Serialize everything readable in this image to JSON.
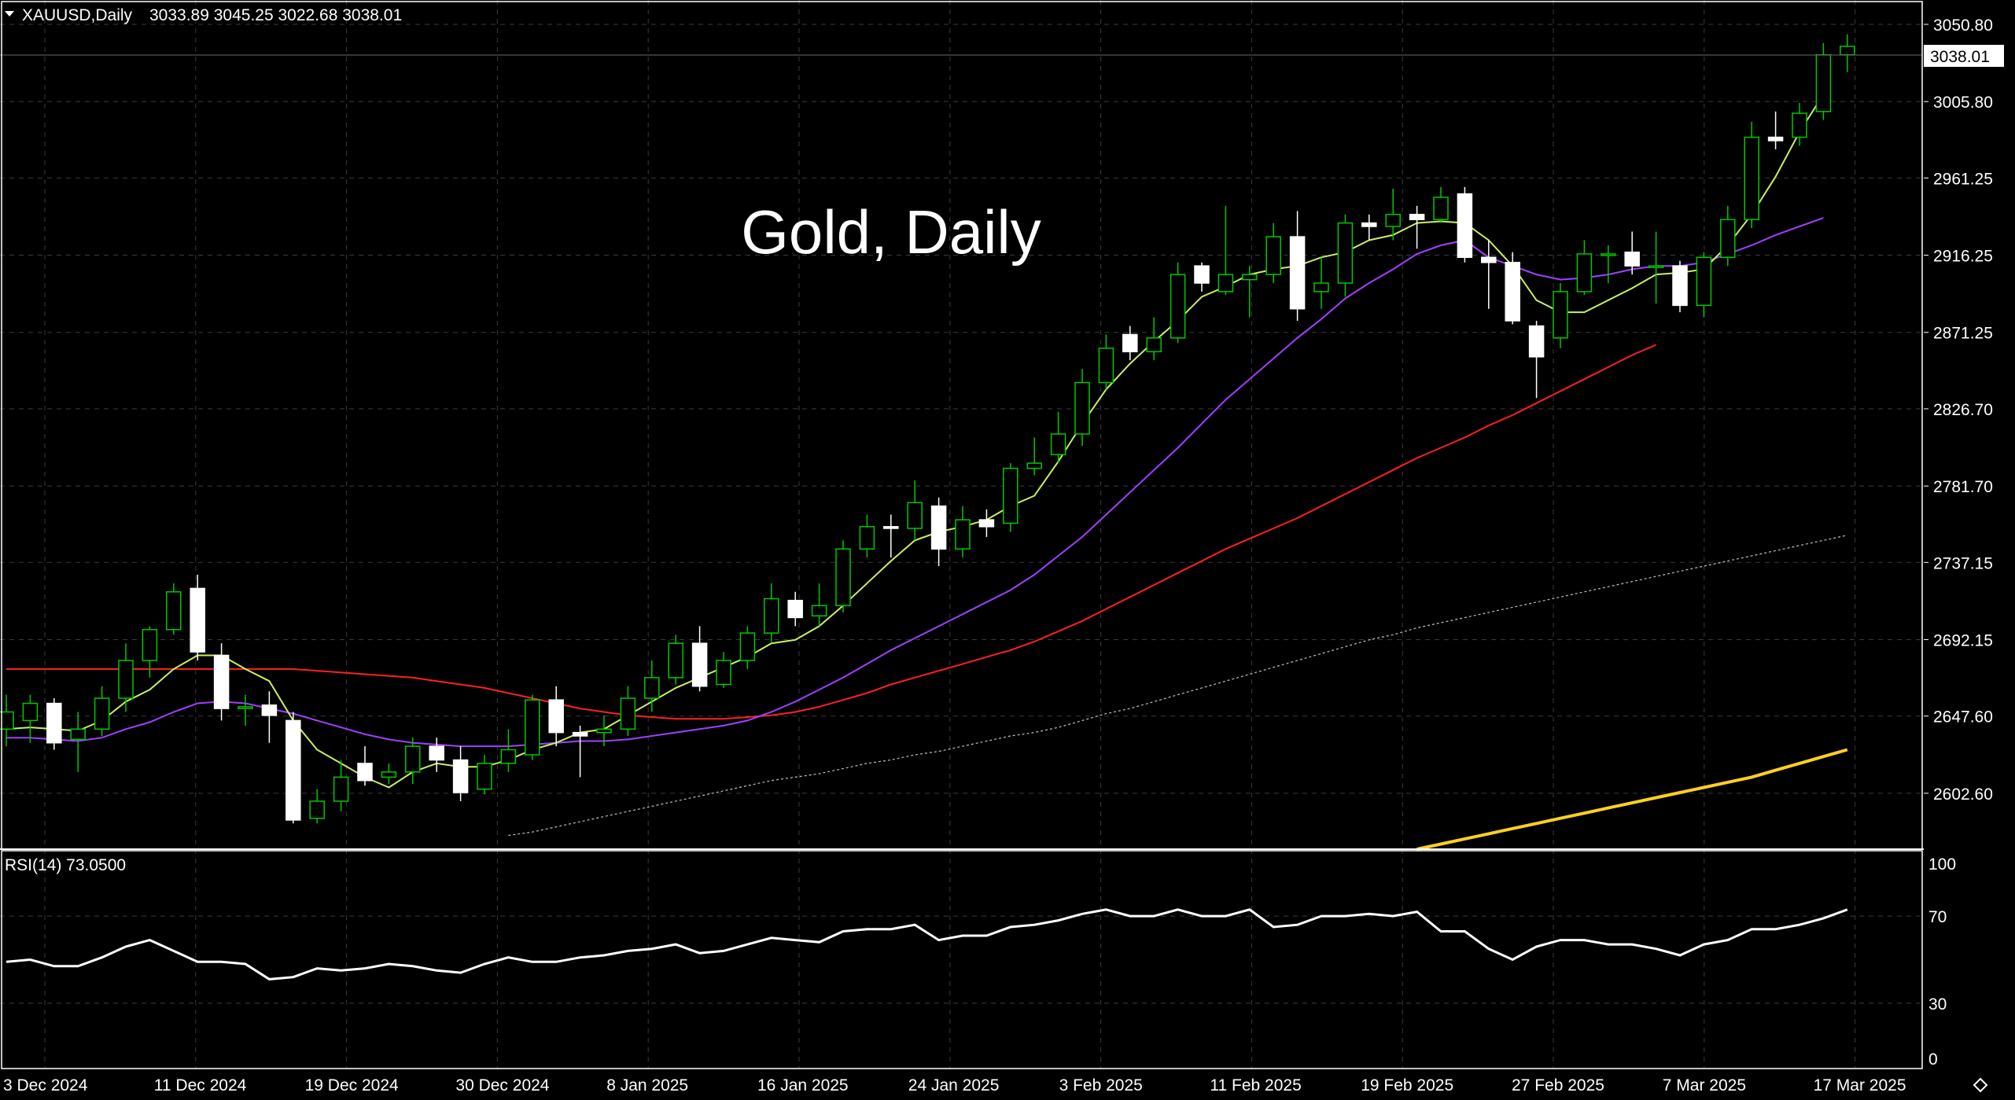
{
  "header": {
    "symbol": "XAUUSD,Daily",
    "ohlc": "3033.89 3045.25 3022.68 3038.01"
  },
  "watermark": "Gold, Daily",
  "rsi_label": "RSI(14) 73.0500",
  "last_price_label": "3038.01",
  "price_axis_labels": [
    "3050.80",
    "3005.80",
    "2961.25",
    "2916.25",
    "2871.25",
    "2826.70",
    "2781.70",
    "2737.15",
    "2692.15",
    "2647.60",
    "2602.60"
  ],
  "rsi_axis_labels": [
    "100",
    "70",
    "30",
    "0"
  ],
  "date_labels": [
    "3 Dec 2024",
    "11 Dec 2024",
    "19 Dec 2024",
    "30 Dec 2024",
    "8 Jan 2025",
    "16 Jan 2025",
    "24 Jan 2025",
    "3 Feb 2025",
    "11 Feb 2025",
    "19 Feb 2025",
    "27 Feb 2025",
    "7 Mar 2025",
    "17 Mar 2025"
  ],
  "colors": {
    "background": "#000000",
    "bull_candle": "#00c800",
    "bear_candle": "#ffffff",
    "ma_fast": "#c8f064",
    "ma_mid": "#a040ff",
    "ma_slow": "#ff2020",
    "ma_long": "#c0c0c0",
    "ma_200": "#ffd020",
    "rsi_line": "#ffffff"
  },
  "chart_data": {
    "type": "candlestick",
    "y_range": [
      2570,
      3065
    ],
    "candles": [
      {
        "o": 2640,
        "h": 2660,
        "l": 2630,
        "c": 2650
      },
      {
        "o": 2645,
        "h": 2660,
        "l": 2632,
        "c": 2655
      },
      {
        "o": 2655,
        "h": 2658,
        "l": 2628,
        "c": 2632
      },
      {
        "o": 2634,
        "h": 2650,
        "l": 2615,
        "c": 2640
      },
      {
        "o": 2640,
        "h": 2665,
        "l": 2636,
        "c": 2658
      },
      {
        "o": 2658,
        "h": 2690,
        "l": 2650,
        "c": 2680
      },
      {
        "o": 2680,
        "h": 2700,
        "l": 2670,
        "c": 2698
      },
      {
        "o": 2698,
        "h": 2725,
        "l": 2695,
        "c": 2720
      },
      {
        "o": 2722,
        "h": 2730,
        "l": 2680,
        "c": 2685
      },
      {
        "o": 2683,
        "h": 2690,
        "l": 2645,
        "c": 2652
      },
      {
        "o": 2652,
        "h": 2660,
        "l": 2642,
        "c": 2653
      },
      {
        "o": 2654,
        "h": 2662,
        "l": 2632,
        "c": 2648
      },
      {
        "o": 2645,
        "h": 2650,
        "l": 2585,
        "c": 2587
      },
      {
        "o": 2588,
        "h": 2605,
        "l": 2585,
        "c": 2598
      },
      {
        "o": 2598,
        "h": 2622,
        "l": 2592,
        "c": 2612
      },
      {
        "o": 2620,
        "h": 2630,
        "l": 2607,
        "c": 2610
      },
      {
        "o": 2612,
        "h": 2620,
        "l": 2608,
        "c": 2615
      },
      {
        "o": 2615,
        "h": 2635,
        "l": 2608,
        "c": 2630
      },
      {
        "o": 2630,
        "h": 2635,
        "l": 2615,
        "c": 2622
      },
      {
        "o": 2622,
        "h": 2630,
        "l": 2598,
        "c": 2603
      },
      {
        "o": 2605,
        "h": 2625,
        "l": 2602,
        "c": 2620
      },
      {
        "o": 2620,
        "h": 2640,
        "l": 2615,
        "c": 2628
      },
      {
        "o": 2625,
        "h": 2660,
        "l": 2622,
        "c": 2657
      },
      {
        "o": 2657,
        "h": 2665,
        "l": 2630,
        "c": 2638
      },
      {
        "o": 2638,
        "h": 2642,
        "l": 2612,
        "c": 2636
      },
      {
        "o": 2638,
        "h": 2648,
        "l": 2630,
        "c": 2640
      },
      {
        "o": 2640,
        "h": 2665,
        "l": 2636,
        "c": 2658
      },
      {
        "o": 2658,
        "h": 2680,
        "l": 2650,
        "c": 2670
      },
      {
        "o": 2670,
        "h": 2695,
        "l": 2666,
        "c": 2690
      },
      {
        "o": 2690,
        "h": 2700,
        "l": 2662,
        "c": 2665
      },
      {
        "o": 2666,
        "h": 2685,
        "l": 2664,
        "c": 2680
      },
      {
        "o": 2680,
        "h": 2700,
        "l": 2675,
        "c": 2696
      },
      {
        "o": 2696,
        "h": 2725,
        "l": 2690,
        "c": 2716
      },
      {
        "o": 2715,
        "h": 2720,
        "l": 2700,
        "c": 2705
      },
      {
        "o": 2706,
        "h": 2725,
        "l": 2700,
        "c": 2712
      },
      {
        "o": 2712,
        "h": 2750,
        "l": 2708,
        "c": 2745
      },
      {
        "o": 2745,
        "h": 2765,
        "l": 2740,
        "c": 2758
      },
      {
        "o": 2758,
        "h": 2765,
        "l": 2740,
        "c": 2757
      },
      {
        "o": 2757,
        "h": 2785,
        "l": 2750,
        "c": 2772
      },
      {
        "o": 2770,
        "h": 2775,
        "l": 2735,
        "c": 2745
      },
      {
        "o": 2745,
        "h": 2770,
        "l": 2740,
        "c": 2762
      },
      {
        "o": 2762,
        "h": 2768,
        "l": 2752,
        "c": 2758
      },
      {
        "o": 2760,
        "h": 2795,
        "l": 2755,
        "c": 2792
      },
      {
        "o": 2792,
        "h": 2810,
        "l": 2788,
        "c": 2795
      },
      {
        "o": 2800,
        "h": 2825,
        "l": 2795,
        "c": 2812
      },
      {
        "o": 2812,
        "h": 2850,
        "l": 2805,
        "c": 2842
      },
      {
        "o": 2842,
        "h": 2870,
        "l": 2838,
        "c": 2862
      },
      {
        "o": 2870,
        "h": 2875,
        "l": 2855,
        "c": 2860
      },
      {
        "o": 2860,
        "h": 2880,
        "l": 2855,
        "c": 2868
      },
      {
        "o": 2868,
        "h": 2912,
        "l": 2865,
        "c": 2905
      },
      {
        "o": 2910,
        "h": 2912,
        "l": 2895,
        "c": 2900
      },
      {
        "o": 2895,
        "h": 2945,
        "l": 2893,
        "c": 2905
      },
      {
        "o": 2902,
        "h": 2910,
        "l": 2880,
        "c": 2905
      },
      {
        "o": 2905,
        "h": 2935,
        "l": 2900,
        "c": 2927
      },
      {
        "o": 2927,
        "h": 2942,
        "l": 2878,
        "c": 2885
      },
      {
        "o": 2895,
        "h": 2915,
        "l": 2885,
        "c": 2900
      },
      {
        "o": 2900,
        "h": 2940,
        "l": 2892,
        "c": 2935
      },
      {
        "o": 2935,
        "h": 2940,
        "l": 2925,
        "c": 2933
      },
      {
        "o": 2933,
        "h": 2955,
        "l": 2925,
        "c": 2940
      },
      {
        "o": 2940,
        "h": 2945,
        "l": 2920,
        "c": 2937
      },
      {
        "o": 2937,
        "h": 2956,
        "l": 2935,
        "c": 2950
      },
      {
        "o": 2952,
        "h": 2956,
        "l": 2912,
        "c": 2915
      },
      {
        "o": 2915,
        "h": 2925,
        "l": 2885,
        "c": 2912
      },
      {
        "o": 2912,
        "h": 2918,
        "l": 2876,
        "c": 2878
      },
      {
        "o": 2875,
        "h": 2878,
        "l": 2833,
        "c": 2857
      },
      {
        "o": 2868,
        "h": 2900,
        "l": 2862,
        "c": 2895
      },
      {
        "o": 2895,
        "h": 2925,
        "l": 2893,
        "c": 2917
      },
      {
        "o": 2917,
        "h": 2922,
        "l": 2900,
        "c": 2917
      },
      {
        "o": 2918,
        "h": 2930,
        "l": 2905,
        "c": 2910
      },
      {
        "o": 2910,
        "h": 2930,
        "l": 2888,
        "c": 2910
      },
      {
        "o": 2910,
        "h": 2913,
        "l": 2883,
        "c": 2887
      },
      {
        "o": 2887,
        "h": 2918,
        "l": 2880,
        "c": 2915
      },
      {
        "o": 2915,
        "h": 2945,
        "l": 2910,
        "c": 2937
      },
      {
        "o": 2937,
        "h": 2994,
        "l": 2932,
        "c": 2985
      },
      {
        "o": 2985,
        "h": 3000,
        "l": 2978,
        "c": 2983
      },
      {
        "o": 2985,
        "h": 3005,
        "l": 2980,
        "c": 2999
      },
      {
        "o": 3000,
        "h": 3040,
        "l": 2995,
        "c": 3033
      },
      {
        "o": 3033,
        "h": 3045,
        "l": 3023,
        "c": 3038
      }
    ],
    "ma_fast_values": [
      2640,
      2641,
      2640,
      2639,
      2645,
      2656,
      2663,
      2675,
      2683,
      2683,
      2675,
      2668,
      2645,
      2628,
      2620,
      2612,
      2606,
      2615,
      2620,
      2618,
      2618,
      2622,
      2628,
      2632,
      2638,
      2640,
      2648,
      2656,
      2664,
      2670,
      2676,
      2682,
      2690,
      2692,
      2700,
      2712,
      2725,
      2738,
      2750,
      2755,
      2758,
      2762,
      2770,
      2776,
      2796,
      2818,
      2838,
      2853,
      2866,
      2878,
      2892,
      2898,
      2905,
      2908,
      2910,
      2915,
      2918,
      2925,
      2928,
      2935,
      2936,
      2935,
      2925,
      2910,
      2890,
      2883,
      2883,
      2890,
      2897,
      2905,
      2906,
      2908,
      2922,
      2940,
      2962,
      2988,
      3010
    ],
    "ma_mid_values": [
      2635,
      2635,
      2634,
      2633,
      2635,
      2640,
      2644,
      2650,
      2655,
      2656,
      2655,
      2652,
      2649,
      2645,
      2641,
      2637,
      2634,
      2632,
      2631,
      2630,
      2630,
      2630,
      2631,
      2632,
      2633,
      2633,
      2634,
      2636,
      2638,
      2640,
      2642,
      2645,
      2650,
      2656,
      2663,
      2670,
      2678,
      2686,
      2693,
      2700,
      2707,
      2714,
      2721,
      2730,
      2741,
      2752,
      2765,
      2778,
      2791,
      2804,
      2818,
      2832,
      2844,
      2856,
      2868,
      2879,
      2891,
      2900,
      2908,
      2917,
      2922,
      2925,
      2915,
      2910,
      2905,
      2902,
      2903,
      2905,
      2908,
      2910,
      2910,
      2912,
      2917,
      2922,
      2928,
      2933,
      2938
    ],
    "ma_slow_values": [
      2675,
      2675,
      2675,
      2675,
      2675,
      2675,
      2675,
      2675,
      2675,
      2675,
      2675,
      2675,
      2675,
      2674,
      2673,
      2672,
      2671,
      2670,
      2668,
      2666,
      2664,
      2661,
      2658,
      2655,
      2652,
      2650,
      2648,
      2647,
      2646,
      2646,
      2646,
      2647,
      2648,
      2650,
      2653,
      2657,
      2661,
      2666,
      2670,
      2674,
      2678,
      2682,
      2686,
      2691,
      2697,
      2703,
      2710,
      2717,
      2724,
      2731,
      2738,
      2745,
      2751,
      2757,
      2763,
      2770,
      2777,
      2784,
      2791,
      2798,
      2804,
      2810,
      2817,
      2823,
      2830,
      2837,
      2844,
      2851,
      2858,
      2864
    ],
    "ma_long_values": [
      2578,
      2580,
      2583,
      2586,
      2589,
      2592,
      2595,
      2598,
      2601,
      2604,
      2607,
      2610,
      2612,
      2614,
      2617,
      2620,
      2622,
      2625,
      2627,
      2630,
      2633,
      2636,
      2638,
      2641,
      2645,
      2649,
      2652,
      2656,
      2660,
      2664,
      2668,
      2672,
      2676,
      2680,
      2684,
      2688,
      2692,
      2695,
      2699,
      2702,
      2705,
      2708,
      2711,
      2714,
      2717,
      2720,
      2723,
      2726,
      2729,
      2732,
      2735,
      2738,
      2741,
      2744,
      2747,
      2750,
      2753
    ],
    "ma_200_values": [
      2570,
      2573,
      2576,
      2579,
      2582,
      2585,
      2588,
      2591,
      2594,
      2597,
      2600,
      2603,
      2606,
      2609,
      2612,
      2616,
      2620,
      2624,
      2628
    ],
    "rsi_values": [
      49,
      50,
      47,
      47,
      51,
      56,
      59,
      54,
      49,
      49,
      48,
      41,
      42,
      46,
      45,
      46,
      48,
      47,
      45,
      44,
      48,
      51,
      49,
      49,
      51,
      52,
      54,
      55,
      57,
      53,
      54,
      57,
      60,
      59,
      58,
      63,
      64,
      64,
      66,
      59,
      61,
      61,
      65,
      66,
      68,
      71,
      73,
      70,
      70,
      73,
      70,
      70,
      73,
      65,
      66,
      70,
      70,
      71,
      70,
      72,
      63,
      63,
      55,
      50,
      56,
      59,
      59,
      57,
      57,
      55,
      52,
      57,
      59,
      64,
      64,
      66,
      69,
      73
    ],
    "rsi_range": [
      0,
      100
    ]
  }
}
